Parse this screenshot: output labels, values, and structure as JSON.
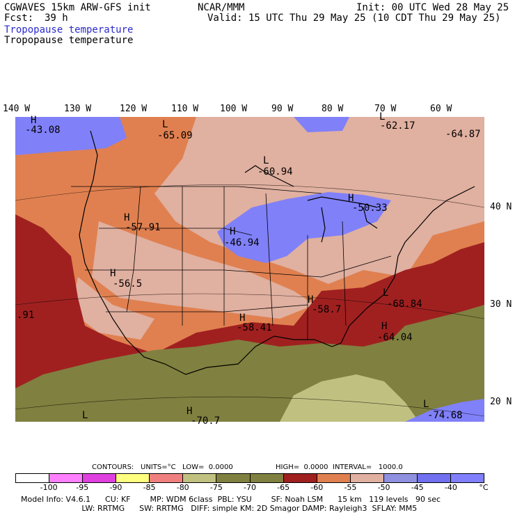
{
  "header": {
    "model": "CGWAVES 15km ARW-GFS init",
    "fcst_label": "Fcst:",
    "fcst_value": "39 h",
    "org": "NCAR/MMM",
    "init": "Init: 00 UTC Wed 28 May 25",
    "valid": "Valid: 15 UTC Thu 29 May 25 (10 CDT Thu 29 May 25)",
    "field_line1": "Tropopause temperature",
    "field_line2": "Tropopause temperature"
  },
  "longitude_labels": [
    "140 W",
    "130 W",
    "120 W",
    "110 W",
    "100 W",
    "90 W",
    "80 W",
    "70 W",
    "60 W"
  ],
  "latitude_labels": [
    "40 N",
    "30 N",
    "20 N"
  ],
  "extrema": [
    {
      "type": "H",
      "value": "-43.08"
    },
    {
      "type": "L",
      "value": "-65.09"
    },
    {
      "type": "L",
      "value": "-62.17"
    },
    {
      "type": "",
      "value": "-64.87"
    },
    {
      "type": "L",
      "value": "-60.94"
    },
    {
      "type": "H",
      "value": "-50.33"
    },
    {
      "type": "H",
      "value": "-57.91"
    },
    {
      "type": "H",
      "value": "-46.94"
    },
    {
      "type": "H",
      "value": "-56.5"
    },
    {
      "type": "",
      "value": ".91"
    },
    {
      "type": "L",
      "value": "-68.84"
    },
    {
      "type": "H",
      "value": "-58.7"
    },
    {
      "type": "H",
      "value": "-64.04"
    },
    {
      "type": "H",
      "value": "-58.41"
    },
    {
      "type": "L",
      "value": ""
    },
    {
      "type": "H",
      "value": "-70.7"
    },
    {
      "type": "L",
      "value": "-74.68"
    }
  ],
  "contours": {
    "label": "CONTOURS:",
    "units": "UNITS=°C",
    "low": "LOW=  0.0000",
    "high": "HIGH=  0.0000",
    "interval": "INTERVAL=   1000.0"
  },
  "colorbar": {
    "colors": [
      "#ffffff",
      "#ff80ff",
      "#e040e0",
      "#ffff80",
      "#f08080",
      "#c0c080",
      "#808040",
      "#808040",
      "#a02020",
      "#e08050",
      "#e0b0a0",
      "#9090e0",
      "#7070f0",
      "#8080ff"
    ],
    "tick_labels": [
      "-100",
      "-95",
      "-90",
      "-85",
      "-80",
      "-75",
      "-70",
      "-65",
      "-60",
      "-55",
      "-50",
      "-45",
      "-40"
    ],
    "unit": "°C"
  },
  "footer": {
    "line1": "Model Info: V4.6.1      CU: KF        MP: WDM 6class  PBL: YSU        SF: Noah LSM      15 km   119 levels   90 sec",
    "line2": "                         LW: RRTMG      SW: RRTMG   DIFF: simple KM: 2D Smagor DAMP: Rayleigh3  SFLAY: MM5"
  }
}
